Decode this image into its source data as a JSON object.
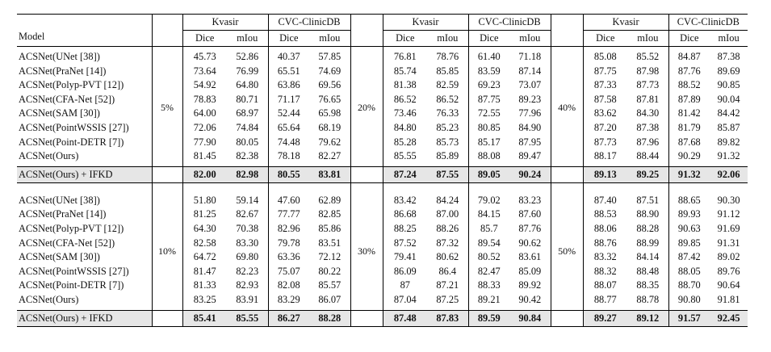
{
  "header": {
    "model_label": "Model",
    "dataset_1": "Kvasir",
    "dataset_2": "CVC-ClinicDB",
    "metric_1": "Dice",
    "metric_2": "mIou"
  },
  "blocks": [
    {
      "ratios": [
        "5%",
        "20%",
        "40%"
      ],
      "rows": [
        {
          "model": "ACSNet(UNet [38])",
          "values": [
            [
              "45.73",
              "52.86",
              "40.37",
              "57.85"
            ],
            [
              "76.81",
              "78.76",
              "61.40",
              "71.18"
            ],
            [
              "85.08",
              "85.52",
              "84.87",
              "87.38"
            ]
          ]
        },
        {
          "model": "ACSNet(PraNet [14])",
          "values": [
            [
              "73.64",
              "76.99",
              "65.51",
              "74.69"
            ],
            [
              "85.74",
              "85.85",
              "83.59",
              "87.14"
            ],
            [
              "87.75",
              "87.98",
              "87.76",
              "89.69"
            ]
          ]
        },
        {
          "model": "ACSNet(Polyp-PVT [12])",
          "values": [
            [
              "54.92",
              "64.80",
              "63.86",
              "69.56"
            ],
            [
              "81.38",
              "82.59",
              "69.23",
              "73.07"
            ],
            [
              "87.33",
              "87.73",
              "88.52",
              "90.85"
            ]
          ]
        },
        {
          "model": "ACSNet(CFA-Net [52])",
          "values": [
            [
              "78.83",
              "80.71",
              "71.17",
              "76.65"
            ],
            [
              "86.52",
              "86.52",
              "87.75",
              "89.23"
            ],
            [
              "87.58",
              "87.81",
              "87.89",
              "90.04"
            ]
          ]
        },
        {
          "model": "ACSNet(SAM [30])",
          "values": [
            [
              "64.00",
              "68.97",
              "52.44",
              "65.98"
            ],
            [
              "73.46",
              "76.33",
              "72.55",
              "77.96"
            ],
            [
              "83.62",
              "84.30",
              "81.42",
              "84.42"
            ]
          ]
        },
        {
          "model": "ACSNet(PointWSSIS [27])",
          "values": [
            [
              "72.06",
              "74.84",
              "65.64",
              "68.19"
            ],
            [
              "84.80",
              "85.23",
              "80.85",
              "84.90"
            ],
            [
              "87.20",
              "87.38",
              "81.79",
              "85.87"
            ]
          ]
        },
        {
          "model": "ACSNet(Point-DETR [7])",
          "values": [
            [
              "77.90",
              "80.05",
              "74.48",
              "79.62"
            ],
            [
              "85.28",
              "85.73",
              "85.17",
              "87.95"
            ],
            [
              "87.73",
              "87.96",
              "87.68",
              "89.82"
            ]
          ]
        },
        {
          "model": "ACSNet(Ours)",
          "values": [
            [
              "81.45",
              "82.38",
              "78.18",
              "82.27"
            ],
            [
              "85.55",
              "85.89",
              "88.08",
              "89.47"
            ],
            [
              "88.17",
              "88.44",
              "90.29",
              "91.32"
            ]
          ]
        }
      ],
      "summary": {
        "model": "ACSNet(Ours) + IFKD",
        "values": [
          [
            "82.00",
            "82.98",
            "80.55",
            "83.81"
          ],
          [
            "87.24",
            "87.55",
            "89.05",
            "90.24"
          ],
          [
            "89.13",
            "89.25",
            "91.32",
            "92.06"
          ]
        ]
      }
    },
    {
      "ratios": [
        "10%",
        "30%",
        "50%"
      ],
      "rows": [
        {
          "model": "ACSNet(UNet [38])",
          "values": [
            [
              "51.80",
              "59.14",
              "47.60",
              "62.89"
            ],
            [
              "83.42",
              "84.24",
              "79.02",
              "83.23"
            ],
            [
              "87.40",
              "87.51",
              "88.65",
              "90.30"
            ]
          ]
        },
        {
          "model": "ACSNet(PraNet [14])",
          "values": [
            [
              "81.25",
              "82.67",
              "77.77",
              "82.85"
            ],
            [
              "86.68",
              "87.00",
              "84.15",
              "87.60"
            ],
            [
              "88.53",
              "88.90",
              "89.93",
              "91.12"
            ]
          ]
        },
        {
          "model": "ACSNet(Polyp-PVT [12])",
          "values": [
            [
              "64.30",
              "70.38",
              "82.96",
              "85.86"
            ],
            [
              "88.25",
              "88.26",
              "85.7",
              "87.76"
            ],
            [
              "88.06",
              "88.28",
              "90.63",
              "91.69"
            ]
          ]
        },
        {
          "model": "ACSNet(CFA-Net [52])",
          "values": [
            [
              "82.58",
              "83.30",
              "79.78",
              "83.51"
            ],
            [
              "87.52",
              "87.32",
              "89.54",
              "90.62"
            ],
            [
              "88.76",
              "88.99",
              "89.85",
              "91.31"
            ]
          ]
        },
        {
          "model": "ACSNet(SAM [30])",
          "values": [
            [
              "64.72",
              "69.80",
              "63.36",
              "72.12"
            ],
            [
              "79.41",
              "80.62",
              "80.52",
              "83.61"
            ],
            [
              "83.32",
              "84.14",
              "87.42",
              "89.02"
            ]
          ]
        },
        {
          "model": "ACSNet(PointWSSIS [27])",
          "values": [
            [
              "81.47",
              "82.23",
              "75.07",
              "80.22"
            ],
            [
              "86.09",
              "86.4",
              "82.47",
              "85.09"
            ],
            [
              "88.32",
              "88.48",
              "88.05",
              "89.76"
            ]
          ]
        },
        {
          "model": "ACSNet(Point-DETR [7])",
          "values": [
            [
              "81.33",
              "82.93",
              "82.08",
              "85.57"
            ],
            [
              "87",
              "87.21",
              "88.33",
              "89.92"
            ],
            [
              "88.07",
              "88.35",
              "88.70",
              "90.64"
            ]
          ]
        },
        {
          "model": "ACSNet(Ours)",
          "values": [
            [
              "83.25",
              "83.91",
              "83.29",
              "86.07"
            ],
            [
              "87.04",
              "87.25",
              "89.21",
              "90.42"
            ],
            [
              "88.77",
              "88.78",
              "90.80",
              "91.81"
            ]
          ]
        }
      ],
      "summary": {
        "model": "ACSNet(Ours) + IFKD",
        "values": [
          [
            "85.41",
            "85.55",
            "86.27",
            "88.28"
          ],
          [
            "87.48",
            "87.83",
            "89.59",
            "90.84"
          ],
          [
            "89.27",
            "89.12",
            "91.57",
            "92.45"
          ]
        ]
      }
    }
  ]
}
